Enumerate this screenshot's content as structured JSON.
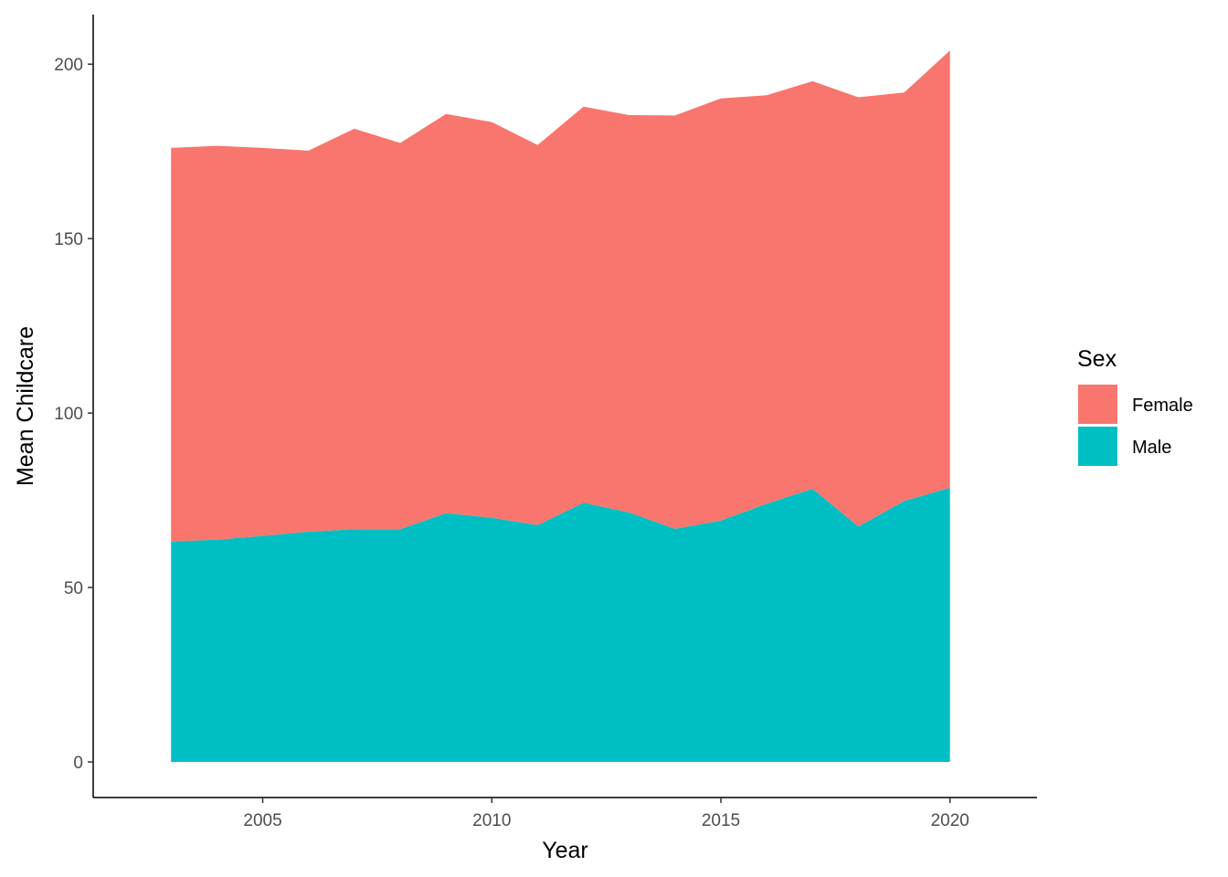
{
  "chart_data": {
    "type": "area",
    "stacked": true,
    "xlabel": "Year",
    "ylabel": "Mean Childcare",
    "x": [
      2003,
      2004,
      2005,
      2006,
      2007,
      2008,
      2009,
      2010,
      2011,
      2012,
      2013,
      2014,
      2015,
      2016,
      2017,
      2018,
      2019,
      2020
    ],
    "series": [
      {
        "name": "Male",
        "color": "#00BFC4",
        "values": [
          63.2,
          63.7,
          64.8,
          66.0,
          66.7,
          66.7,
          71.3,
          70.0,
          67.9,
          74.3,
          71.5,
          66.8,
          69.2,
          74.0,
          78.3,
          67.5,
          74.8,
          78.6
        ]
      },
      {
        "name": "Female",
        "color": "#F8766D",
        "values": [
          112.8,
          112.9,
          111.2,
          109.2,
          114.8,
          110.7,
          114.4,
          113.4,
          108.9,
          113.5,
          113.9,
          118.5,
          121.0,
          117.1,
          116.8,
          123.0,
          117.1,
          125.3
        ]
      }
    ],
    "xlim": [
      2001.3,
      2021.9
    ],
    "ylim": [
      -10.2,
      214.2
    ],
    "x_ticks": [
      2005,
      2010,
      2015,
      2020
    ],
    "y_ticks": [
      0,
      50,
      100,
      150,
      200
    ],
    "x_tick_labels": [
      "2005",
      "2010",
      "2015",
      "2020"
    ],
    "y_tick_labels": [
      "0",
      "50",
      "100",
      "150",
      "200"
    ],
    "grid": false,
    "legend": {
      "title": "Sex",
      "position": "right",
      "order": [
        "Female",
        "Male"
      ]
    }
  }
}
